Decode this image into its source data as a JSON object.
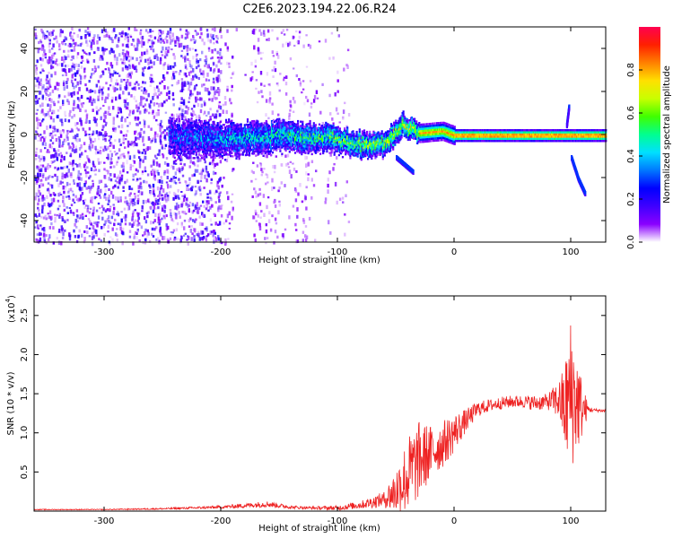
{
  "title": "C2E6.2023.194.22.06.R24",
  "chart_data": [
    {
      "type": "heatmap",
      "xlabel": "Height of straight line (km)",
      "ylabel": "Frequency (Hz)",
      "xlim": [
        -360,
        130
      ],
      "ylim": [
        -50,
        50
      ],
      "xticks": [
        -300,
        -200,
        -100,
        0,
        100
      ],
      "yticks": [
        -40,
        -20,
        0,
        20,
        40
      ],
      "colorbar": {
        "label": "Normalized spectral amplitude",
        "range": [
          0.0,
          1.0
        ],
        "ticks": [
          "0.0",
          "0.2",
          "0.4",
          "0.6",
          "0.8"
        ],
        "colormap": [
          "#ffffff",
          "#8a00ff",
          "#3f00ff",
          "#0000ff",
          "#0078ff",
          "#00e0ff",
          "#00ff90",
          "#40ff00",
          "#c8ff00",
          "#ffe000",
          "#ff8000",
          "#ff2000",
          "#ff0050"
        ]
      },
      "grid": false,
      "description_features": {
        "noise_region_x": [
          -360,
          -90
        ],
        "signal_centerline": [
          [
            -240,
            -1
          ],
          [
            -200,
            -2
          ],
          [
            -150,
            0
          ],
          [
            -110,
            -1
          ],
          [
            -80,
            -4
          ],
          [
            -60,
            -4
          ],
          [
            -45,
            5
          ],
          [
            -30,
            1
          ],
          [
            -10,
            2
          ],
          [
            0,
            0
          ],
          [
            50,
            0
          ],
          [
            95,
            0
          ],
          [
            105,
            0
          ],
          [
            130,
            0
          ]
        ],
        "branch_down": [
          [
            -50,
            -10
          ],
          [
            -35,
            -17
          ]
        ],
        "branch_up_at_100": [
          [
            96,
            5
          ],
          [
            98,
            14
          ]
        ],
        "branch_down_at_100": [
          [
            100,
            -10
          ],
          [
            106,
            -20
          ],
          [
            112,
            -27
          ]
        ]
      }
    },
    {
      "type": "line",
      "xlabel": "Height of straight line (km)",
      "ylabel": "SNR (10 * v/v)",
      "yexponent_label": "(x10",
      "yexponent": "4",
      "xlim": [
        -360,
        130
      ],
      "ylim": [
        0,
        2.75
      ],
      "xticks": [
        -300,
        -200,
        -100,
        0,
        100
      ],
      "yticks": [
        0.5,
        1.0,
        1.5,
        2.0,
        2.5
      ],
      "ytick_labels": [
        "0.5",
        "1.0",
        "1.5",
        "2.0",
        "2.5"
      ],
      "color": "#ee2222",
      "grid": false,
      "series": [
        {
          "x": [
            -360,
            -300,
            -250,
            -200,
            -180,
            -160,
            -140,
            -120,
            -100,
            -80,
            -60,
            -50,
            -40,
            -30,
            -20,
            -10,
            0,
            10,
            20,
            30,
            40,
            50,
            60,
            70,
            80,
            90,
            95,
            100,
            105,
            110,
            115,
            120,
            130
          ],
          "y": [
            0.02,
            0.02,
            0.03,
            0.05,
            0.07,
            0.09,
            0.05,
            0.04,
            0.04,
            0.08,
            0.15,
            0.25,
            0.45,
            0.65,
            0.75,
            0.85,
            1.0,
            1.15,
            1.3,
            1.35,
            1.38,
            1.4,
            1.4,
            1.38,
            1.4,
            1.42,
            1.3,
            1.5,
            1.4,
            1.3,
            1.3,
            1.29,
            1.28
          ],
          "noise_amplitude": [
            0.005,
            0.005,
            0.01,
            0.02,
            0.03,
            0.04,
            0.02,
            0.02,
            0.03,
            0.05,
            0.1,
            0.3,
            0.5,
            0.5,
            0.35,
            0.3,
            0.25,
            0.15,
            0.1,
            0.08,
            0.08,
            0.08,
            0.08,
            0.1,
            0.1,
            0.25,
            0.6,
            1.0,
            0.7,
            0.35,
            0.05,
            0.02,
            0.02
          ]
        }
      ]
    }
  ]
}
